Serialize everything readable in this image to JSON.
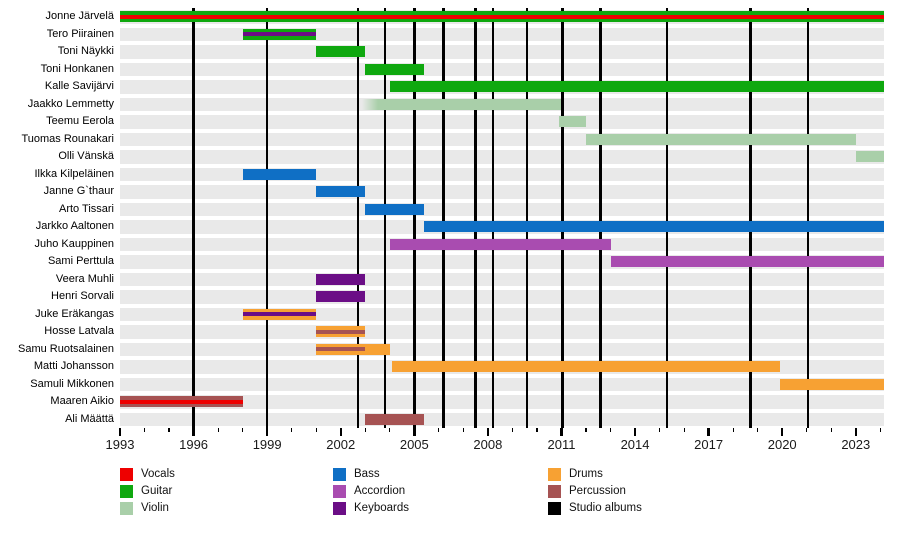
{
  "chart_data": {
    "type": "timeline",
    "description": "Band members timeline (gantt-style) with instrument color bars and studio album lines",
    "x_axis": {
      "start": 1993,
      "end": 2024.15,
      "labeled_ticks": [
        1993,
        1996,
        1999,
        2002,
        2005,
        2008,
        2011,
        2014,
        2017,
        2020,
        2023
      ],
      "minor_tick_interval": 1
    },
    "colors": {
      "vocals": "#EE0000",
      "guitar": "#0FA80F",
      "violin": "#A9CFA9",
      "bass": "#0F6FC5",
      "accordion": "#A94CB0",
      "keyboards": "#6B0E86",
      "drums": "#F7A133",
      "percussion": "#A65353",
      "studio_albums": "#000000",
      "row_background": "#E9E9E9"
    },
    "members": [
      {
        "name": "Jonne Järvelä",
        "bars": [
          {
            "role": "guitar",
            "start": 1993,
            "end": 2024.15,
            "stripe": {
              "role": "vocals",
              "start": 1993,
              "end": 2024.15
            }
          }
        ]
      },
      {
        "name": "Tero Piirainen",
        "bars": [
          {
            "role": "guitar",
            "start": 1998,
            "end": 2001,
            "stripe": {
              "role": "keyboards",
              "start": 1998,
              "end": 2001
            }
          }
        ]
      },
      {
        "name": "Toni Näykki",
        "bars": [
          {
            "role": "guitar",
            "start": 2001,
            "end": 2003
          }
        ]
      },
      {
        "name": "Toni Honkanen",
        "bars": [
          {
            "role": "guitar",
            "start": 2003,
            "end": 2005.4
          }
        ]
      },
      {
        "name": "Kalle Savijärvi",
        "bars": [
          {
            "role": "guitar",
            "start": 2004,
            "end": 2024.15
          }
        ]
      },
      {
        "name": "Jaakko Lemmetty",
        "bars": [
          {
            "role": "violin",
            "start": 2002.85,
            "end": 2011,
            "fade_in": true
          }
        ]
      },
      {
        "name": "Teemu Eerola",
        "bars": [
          {
            "role": "violin",
            "start": 2010.9,
            "end": 2012
          }
        ]
      },
      {
        "name": "Tuomas Rounakari",
        "bars": [
          {
            "role": "violin",
            "start": 2012,
            "end": 2023
          }
        ]
      },
      {
        "name": "Olli Vänskä",
        "bars": [
          {
            "role": "violin",
            "start": 2023,
            "end": 2024.15
          }
        ]
      },
      {
        "name": "Ilkka Kilpeläinen",
        "bars": [
          {
            "role": "bass",
            "start": 1998,
            "end": 2001
          }
        ]
      },
      {
        "name": "Janne G`thaur",
        "bars": [
          {
            "role": "bass",
            "start": 2001,
            "end": 2003
          }
        ]
      },
      {
        "name": "Arto Tissari",
        "bars": [
          {
            "role": "bass",
            "start": 2003,
            "end": 2005.4
          }
        ]
      },
      {
        "name": "Jarkko Aaltonen",
        "bars": [
          {
            "role": "bass",
            "start": 2005.4,
            "end": 2024.15
          }
        ]
      },
      {
        "name": "Juho Kauppinen",
        "bars": [
          {
            "role": "accordion",
            "start": 2004,
            "end": 2013
          }
        ]
      },
      {
        "name": "Sami Perttula",
        "bars": [
          {
            "role": "accordion",
            "start": 2013,
            "end": 2024.15
          }
        ]
      },
      {
        "name": "Veera Muhli",
        "bars": [
          {
            "role": "keyboards",
            "start": 2001,
            "end": 2003
          }
        ]
      },
      {
        "name": "Henri Sorvali",
        "bars": [
          {
            "role": "keyboards",
            "start": 2001,
            "end": 2003
          }
        ]
      },
      {
        "name": "Juke Eräkangas",
        "bars": [
          {
            "role": "drums",
            "start": 1998,
            "end": 2001,
            "stripe": {
              "role": "keyboards",
              "start": 1998,
              "end": 2001
            }
          }
        ]
      },
      {
        "name": "Hosse Latvala",
        "bars": [
          {
            "role": "drums",
            "start": 2001,
            "end": 2003,
            "stripe": {
              "role": "percussion",
              "start": 2001,
              "end": 2003
            }
          }
        ]
      },
      {
        "name": "Samu Ruotsalainen",
        "bars": [
          {
            "role": "drums",
            "start": 2001,
            "end": 2004,
            "stripe": {
              "role": "percussion",
              "start": 2001,
              "end": 2003
            }
          }
        ]
      },
      {
        "name": "Matti Johansson",
        "bars": [
          {
            "role": "drums",
            "start": 2004.1,
            "end": 2019.9
          }
        ]
      },
      {
        "name": "Samuli Mikkonen",
        "bars": [
          {
            "role": "drums",
            "start": 2019.9,
            "end": 2024.15
          }
        ]
      },
      {
        "name": "Maaren Aikio",
        "bars": [
          {
            "role": "percussion",
            "start": 1993,
            "end": 1998,
            "stripe": {
              "role": "vocals",
              "start": 1993,
              "end": 1998
            }
          }
        ]
      },
      {
        "name": "Ali Määttä",
        "bars": [
          {
            "role": "percussion",
            "start": 2003,
            "end": 2005.4
          }
        ]
      }
    ],
    "album_lines": [
      1996.0,
      1999.0,
      2002.7,
      2003.8,
      2005.0,
      2006.2,
      2007.5,
      2008.2,
      2009.6,
      2011.05,
      2012.6,
      2015.3,
      2018.7,
      2021.05
    ],
    "legend": {
      "columns": [
        [
          {
            "label": "Vocals",
            "role": "vocals"
          },
          {
            "label": "Guitar",
            "role": "guitar"
          },
          {
            "label": "Violin",
            "role": "violin"
          }
        ],
        [
          {
            "label": "Bass",
            "role": "bass"
          },
          {
            "label": "Accordion",
            "role": "accordion"
          },
          {
            "label": "Keyboards",
            "role": "keyboards"
          }
        ],
        [
          {
            "label": "Drums",
            "role": "drums"
          },
          {
            "label": "Percussion",
            "role": "percussion"
          },
          {
            "label": "Studio albums",
            "role": "studio_albums"
          }
        ]
      ]
    }
  }
}
